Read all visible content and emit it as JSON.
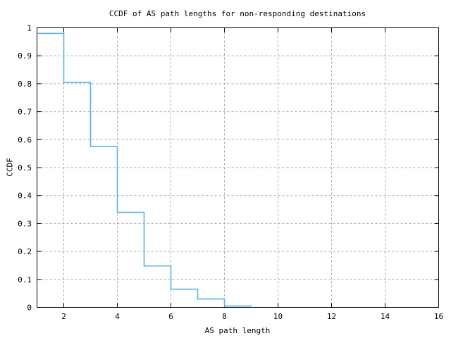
{
  "figure": {
    "background": "#ffffff",
    "frame_color": "#000000",
    "grid_color": "#a6a6a6",
    "text_color": "#000000"
  },
  "chart_data": {
    "type": "line",
    "subtype": "step-function-ccdf",
    "title": "CCDF of AS path lengths for non-responding destinations",
    "xlabel": "AS path length",
    "ylabel": "CCDF",
    "xlim": [
      1,
      16
    ],
    "ylim": [
      0,
      1
    ],
    "grid": "dashed-on",
    "legend": "none",
    "line_color": "#56b4e9",
    "xtick_values": [
      2,
      4,
      6,
      8,
      10,
      12,
      14,
      16
    ],
    "xtick_labels": [
      "2",
      "4",
      "6",
      "8",
      "10",
      "12",
      "14",
      "16"
    ],
    "ytick_values": [
      0,
      0.1,
      0.2,
      0.3,
      0.4,
      0.5,
      0.6,
      0.7,
      0.8,
      0.9,
      1
    ],
    "ytick_labels": [
      "0",
      "0.1",
      "0.2",
      "0.3",
      "0.4",
      "0.5",
      "0.6",
      "0.7",
      "0.8",
      "0.9",
      "1"
    ],
    "steps": [
      {
        "x_start": 1,
        "x_end": 2,
        "ccdf": 0.98
      },
      {
        "x_start": 2,
        "x_end": 3,
        "ccdf": 0.805
      },
      {
        "x_start": 3,
        "x_end": 4,
        "ccdf": 0.575
      },
      {
        "x_start": 4,
        "x_end": 5,
        "ccdf": 0.34
      },
      {
        "x_start": 5,
        "x_end": 6,
        "ccdf": 0.148
      },
      {
        "x_start": 6,
        "x_end": 7,
        "ccdf": 0.065
      },
      {
        "x_start": 7,
        "x_end": 8,
        "ccdf": 0.03
      },
      {
        "x_start": 8,
        "x_end": 9,
        "ccdf": 0.005
      }
    ],
    "final_drop_x": 9
  }
}
